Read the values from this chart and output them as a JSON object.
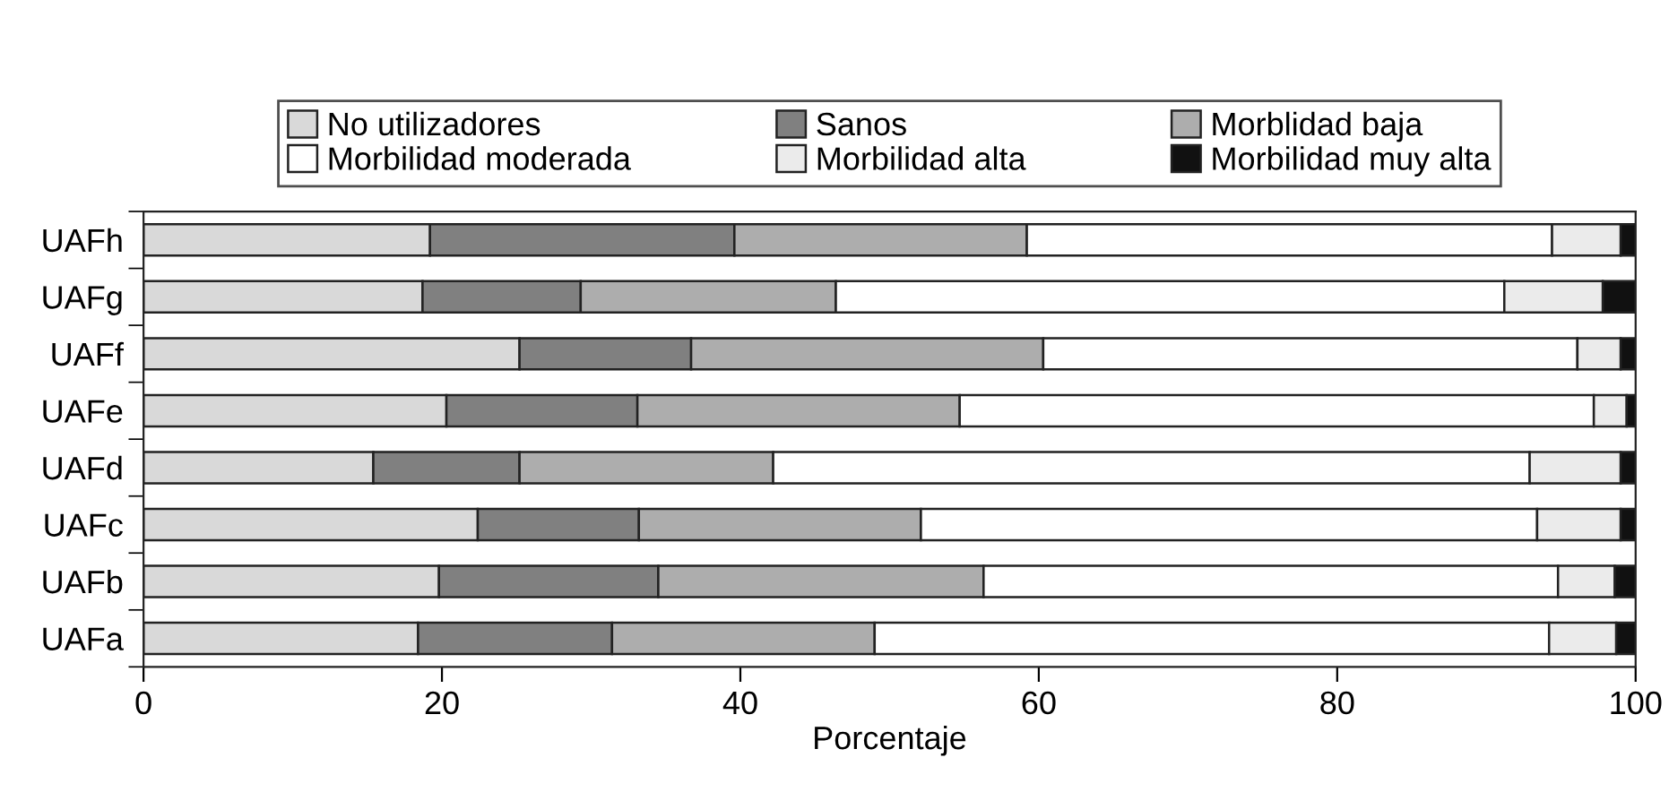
{
  "chart_data": {
    "type": "bar",
    "orientation": "horizontal",
    "stacked": true,
    "xlabel": "Porcentaje",
    "categories": [
      "UAFh",
      "UAFg",
      "UAFf",
      "UAFe",
      "UAFd",
      "UAFc",
      "UAFb",
      "UAFa"
    ],
    "series": [
      {
        "name": "No utilizadores",
        "color": "#d9d9d9",
        "values": [
          19.2,
          18.7,
          25.2,
          20.3,
          15.4,
          22.4,
          19.8,
          18.4
        ]
      },
      {
        "name": "Sanos",
        "color": "#808080",
        "values": [
          20.4,
          10.6,
          11.5,
          12.8,
          9.8,
          10.8,
          14.7,
          13.0
        ]
      },
      {
        "name": "Morblidad baja",
        "color": "#adadad",
        "values": [
          19.6,
          17.1,
          23.6,
          21.6,
          17.0,
          18.9,
          21.8,
          17.6
        ]
      },
      {
        "name": "Morbilidad moderada",
        "color": "#ffffff",
        "values": [
          35.2,
          44.8,
          35.8,
          42.5,
          50.7,
          41.3,
          38.5,
          45.2
        ]
      },
      {
        "name": "Morbilidad alta",
        "color": "#ebebeb",
        "values": [
          4.6,
          6.6,
          2.9,
          2.2,
          6.1,
          5.6,
          3.8,
          4.5
        ]
      },
      {
        "name": "Morbilidad muy alta",
        "color": "#111111",
        "values": [
          1.0,
          2.2,
          1.0,
          0.6,
          1.0,
          1.0,
          1.4,
          1.3
        ]
      }
    ],
    "xlim": [
      0,
      100
    ],
    "xticks": [
      0,
      20,
      40,
      60,
      80,
      100
    ],
    "legend": "top"
  }
}
